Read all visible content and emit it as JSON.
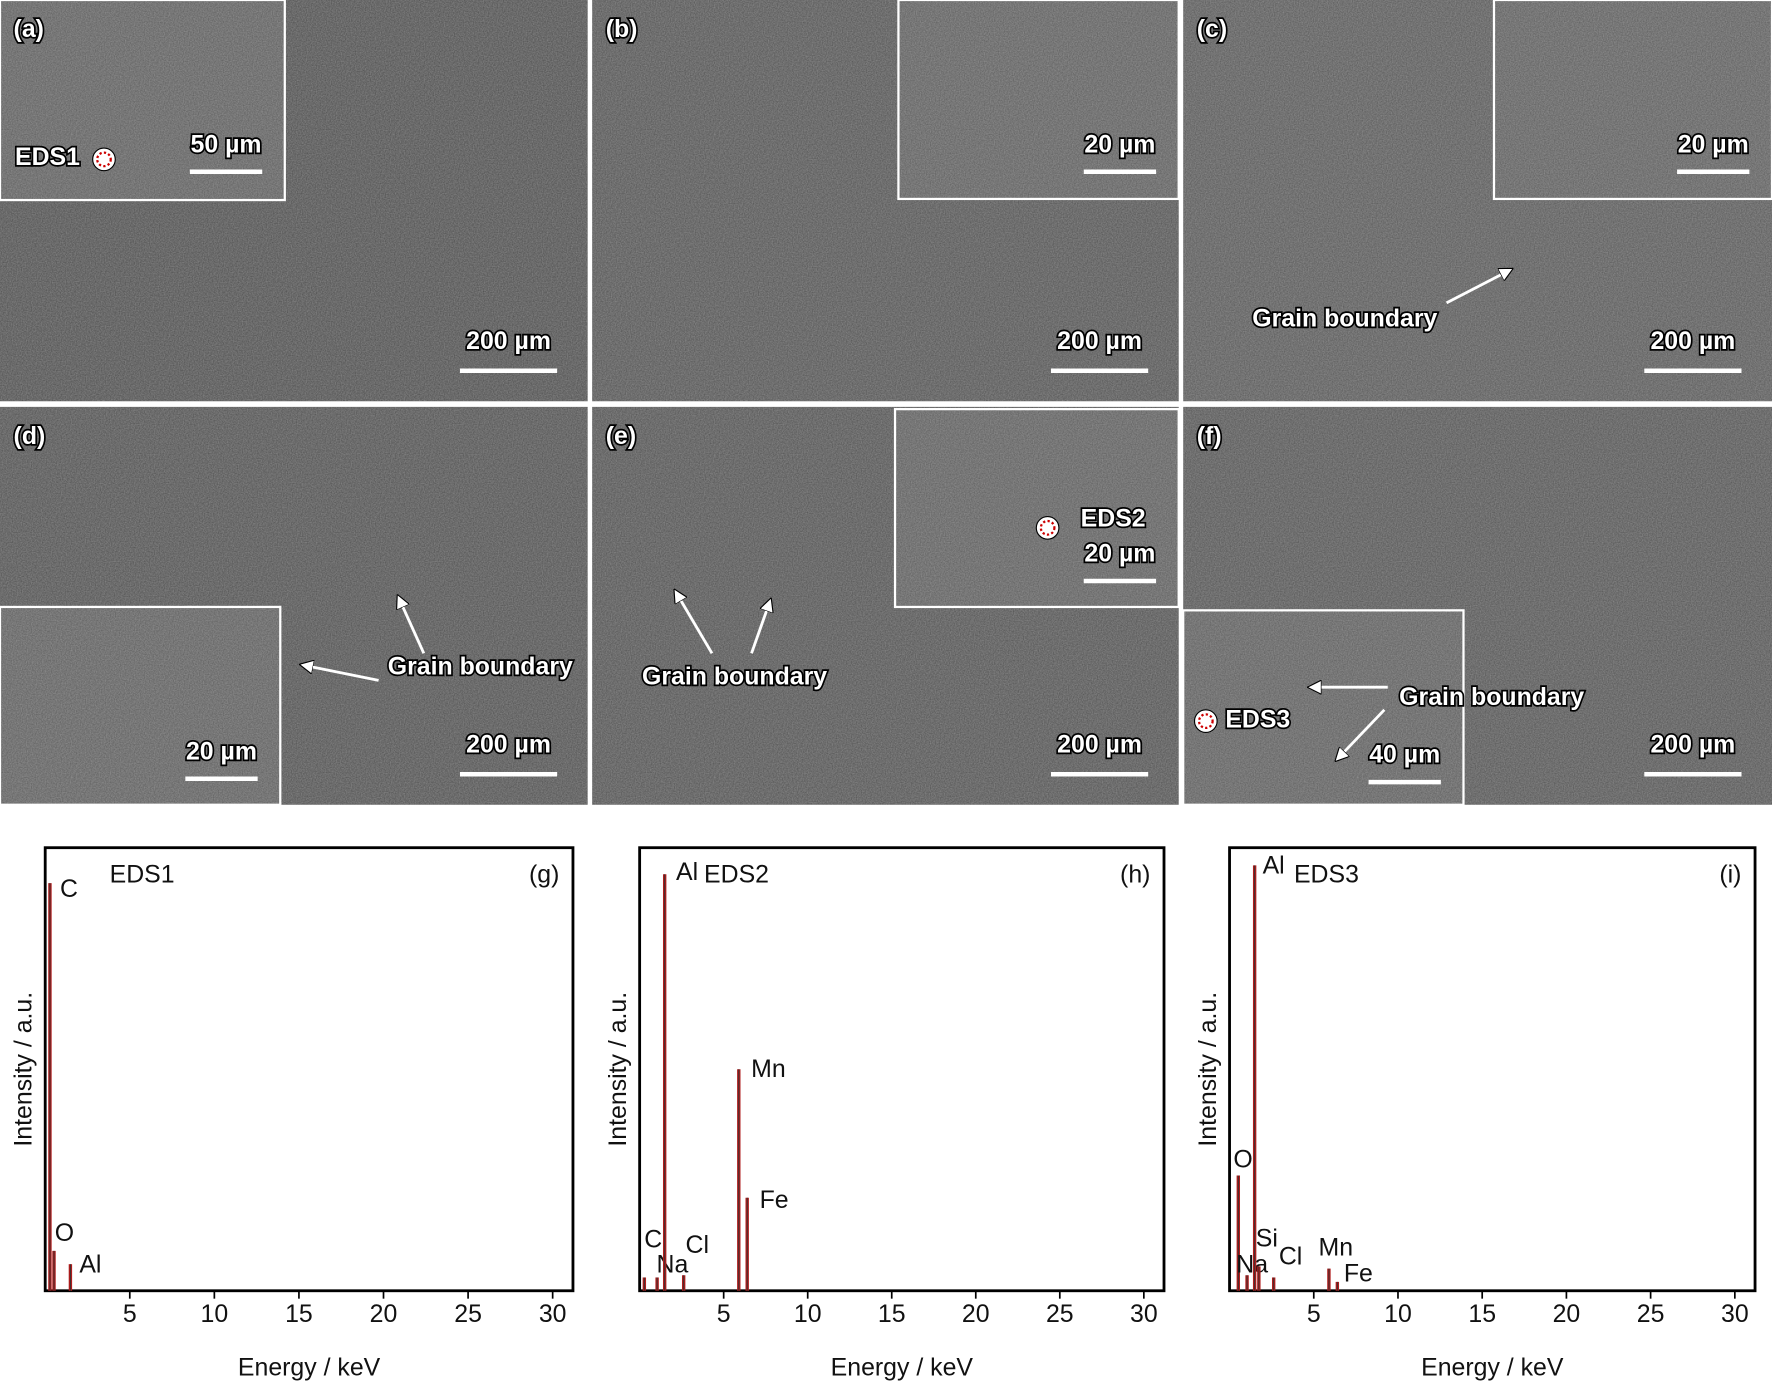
{
  "images": [
    {
      "label": "(a)",
      "scale_bar": "200 µm",
      "inset_scale_bar": "50 µm",
      "annotations": [
        "EDS1"
      ]
    },
    {
      "label": "(b)",
      "scale_bar": "200 µm",
      "inset_scale_bar": "20 µm",
      "annotations": []
    },
    {
      "label": "(c)",
      "scale_bar": "200 µm",
      "inset_scale_bar": "20 µm",
      "annotations": [
        "Grain boundary"
      ]
    },
    {
      "label": "(d)",
      "scale_bar": "200 µm",
      "inset_scale_bar": "20 µm",
      "annotations": [
        "Grain boundary"
      ]
    },
    {
      "label": "(e)",
      "scale_bar": "200 µm",
      "inset_scale_bar": "20 µm",
      "annotations": [
        "EDS2",
        "Grain boundary"
      ]
    },
    {
      "label": "(f)",
      "scale_bar": "200 µm",
      "inset_scale_bar": "40 µm",
      "annotations": [
        "Grain boundary",
        "EDS3"
      ]
    }
  ],
  "chart_data": [
    {
      "type": "spectrum",
      "title": "EDS1",
      "panel_label": "(g)",
      "x_label": "Energy / keV",
      "y_label": "Intensity / a.u.",
      "x": [
        0.28,
        0.52,
        1.49
      ],
      "values": [
        92,
        9,
        6
      ],
      "labels": [
        "C",
        "O",
        "Al"
      ],
      "color": "#b01c1c",
      "xlim": [
        0,
        31.2
      ],
      "xticks": [
        5,
        10,
        15,
        20,
        25,
        30
      ],
      "ylim": [
        0,
        100
      ]
    },
    {
      "type": "spectrum",
      "title": "EDS2",
      "panel_label": "(h)",
      "x_label": "Energy / keV",
      "y_label": "Intensity / a.u.",
      "x": [
        0.28,
        1.04,
        1.49,
        2.62,
        5.9,
        6.4
      ],
      "values": [
        3,
        3,
        94,
        3.5,
        50,
        21
      ],
      "labels": [
        "C",
        "Na",
        "Al",
        "Cl",
        "Mn",
        "Fe"
      ],
      "color": "#b01c1c",
      "xlim": [
        0,
        31.2
      ],
      "xticks": [
        5,
        10,
        15,
        20,
        25,
        30
      ],
      "ylim": [
        0,
        100
      ]
    },
    {
      "type": "spectrum",
      "title": "EDS3",
      "panel_label": "(i)",
      "x_label": "Energy / keV",
      "y_label": "Intensity / a.u.",
      "x": [
        0.52,
        1.04,
        1.49,
        1.74,
        2.62,
        5.9,
        6.4
      ],
      "values": [
        26,
        3.5,
        96,
        5.5,
        3,
        5,
        2
      ],
      "labels": [
        "O",
        "Na",
        "Al",
        "Si",
        "Cl",
        "Mn",
        "Fe"
      ],
      "color": "#b01c1c",
      "xlim": [
        0,
        31.2
      ],
      "xticks": [
        5,
        10,
        15,
        20,
        25,
        30
      ],
      "ylim": [
        0,
        100
      ]
    }
  ]
}
